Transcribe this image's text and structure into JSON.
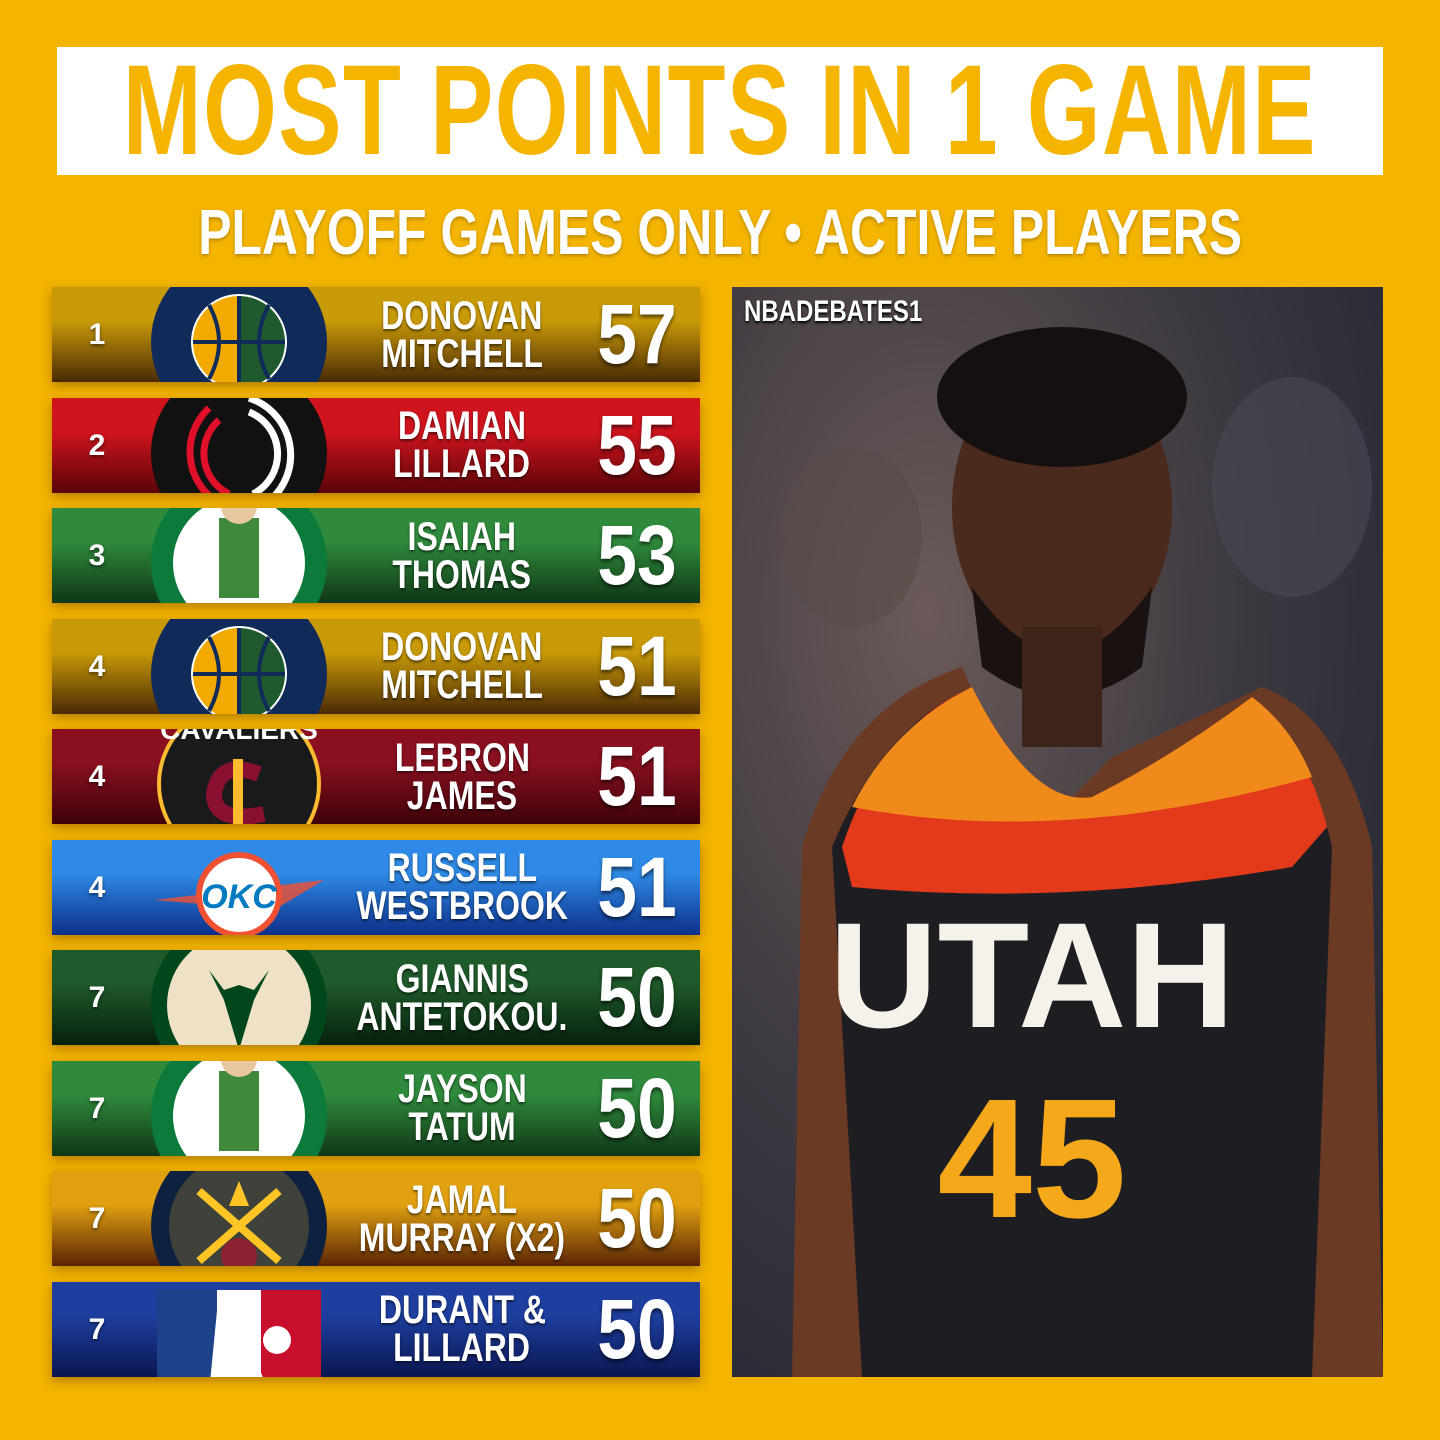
{
  "header": {
    "title": "MOST POINTS IN 1 GAME",
    "subtitle": "PLAYOFF GAMES ONLY • ACTIVE PLAYERS"
  },
  "rows": [
    {
      "rank": "1",
      "first": "DONOVAN",
      "last": "MITCHELL",
      "points": "57",
      "team": "jazz",
      "colors": [
        "#c99a08",
        "#4a2a05"
      ]
    },
    {
      "rank": "2",
      "first": "DAMIAN",
      "last": "LILLARD",
      "points": "55",
      "team": "blazers",
      "colors": [
        "#d0141e",
        "#5a0408"
      ]
    },
    {
      "rank": "3",
      "first": "ISAIAH",
      "last": "THOMAS",
      "points": "53",
      "team": "celtics",
      "colors": [
        "#2f8a3c",
        "#0f3716"
      ]
    },
    {
      "rank": "4",
      "first": "DONOVAN",
      "last": "MITCHELL",
      "points": "51",
      "team": "jazz",
      "colors": [
        "#c99a08",
        "#4a2a05"
      ]
    },
    {
      "rank": "4",
      "first": "LEBRON",
      "last": "JAMES",
      "points": "51",
      "team": "cavaliers",
      "colors": [
        "#8a1020",
        "#3e0208"
      ]
    },
    {
      "rank": "4",
      "first": "RUSSELL",
      "last": "WESTBROOK",
      "points": "51",
      "team": "thunder",
      "colors": [
        "#2e8ae6",
        "#0c2f8a"
      ]
    },
    {
      "rank": "7",
      "first": "GIANNIS",
      "last": "ANTETOKOU.",
      "points": "50",
      "team": "bucks",
      "colors": [
        "#1f5a2a",
        "#06210c"
      ]
    },
    {
      "rank": "7",
      "first": "JAYSON",
      "last": "TATUM",
      "points": "50",
      "team": "celtics",
      "colors": [
        "#2f8a3c",
        "#0f3716"
      ]
    },
    {
      "rank": "7",
      "first": "JAMAL",
      "last": "MURRAY (X2)",
      "points": "50",
      "team": "nuggets",
      "colors": [
        "#e0a010",
        "#5a2405"
      ]
    },
    {
      "rank": "7",
      "first": "DURANT &",
      "last": "LILLARD",
      "points": "50",
      "team": "nba",
      "colors": [
        "#1e3fa0",
        "#0b1650"
      ]
    }
  ],
  "photo": {
    "handle": "NBADEBATES1",
    "jersey_text": "UTAH",
    "jersey_number": "45"
  }
}
